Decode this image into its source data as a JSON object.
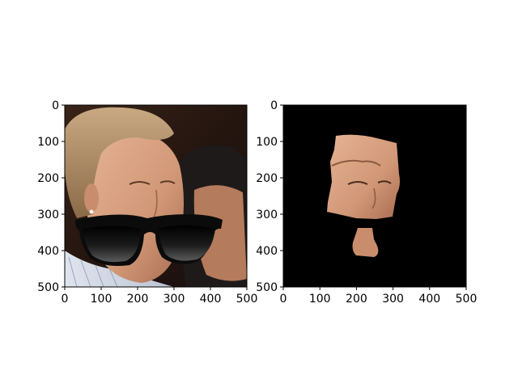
{
  "chart_data": [
    {
      "type": "image",
      "panel": "left",
      "content": "photo of a man's face with cartoon black sunglasses overlay, second man partially visible at right",
      "xlim": [
        0,
        500
      ],
      "ylim": [
        500,
        0
      ],
      "xticks": [
        0,
        100,
        200,
        300,
        400,
        500
      ],
      "yticks": [
        0,
        100,
        200,
        300,
        400,
        500
      ],
      "tick_labels": [
        "0",
        "100",
        "200",
        "300",
        "400",
        "500"
      ]
    },
    {
      "type": "image",
      "panel": "right",
      "content": "segmented skin mask: face region and chin region on black background",
      "xlim": [
        0,
        500
      ],
      "ylim": [
        500,
        0
      ],
      "xticks": [
        0,
        100,
        200,
        300,
        400,
        500
      ],
      "yticks": [
        0,
        100,
        200,
        300,
        400,
        500
      ],
      "tick_labels": [
        "0",
        "100",
        "200",
        "300",
        "400",
        "500"
      ]
    }
  ]
}
